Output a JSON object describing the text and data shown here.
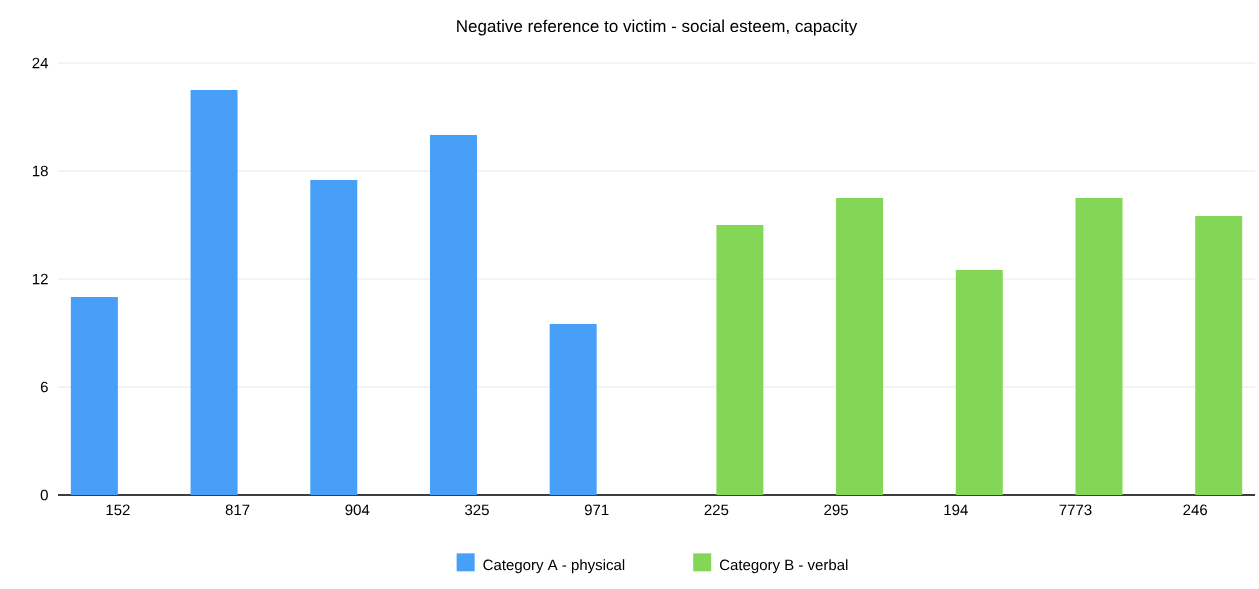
{
  "chart_data": {
    "type": "bar",
    "title": "Negative reference to victim - social esteem, capacity",
    "categories": [
      "152",
      "817",
      "904",
      "325",
      "971",
      "225",
      "295",
      "194",
      "7773",
      "246"
    ],
    "series": [
      {
        "name": "Category A - physical",
        "color": "#489ff8",
        "values": [
          11,
          22.5,
          17.5,
          20,
          9.5,
          null,
          null,
          null,
          null,
          null
        ]
      },
      {
        "name": "Category B - verbal",
        "color": "#84d656",
        "values": [
          null,
          null,
          null,
          null,
          null,
          15,
          16.5,
          12.5,
          16.5,
          15.5
        ]
      }
    ],
    "ylim": [
      0,
      24
    ],
    "yticks": [
      0,
      6,
      12,
      18,
      24
    ],
    "grid": "y",
    "legend": "bottom"
  }
}
